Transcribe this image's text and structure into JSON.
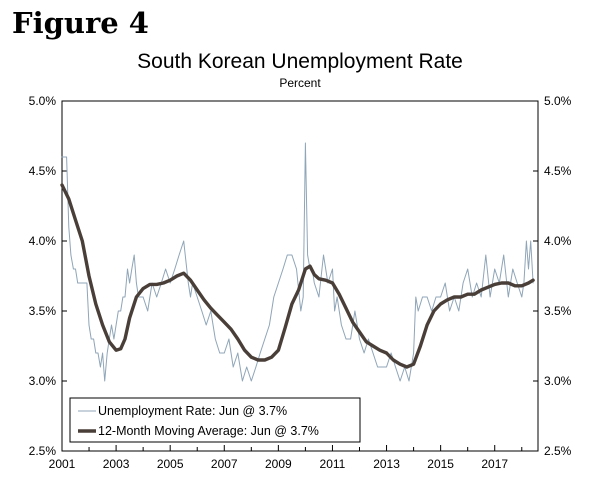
{
  "figure_label": "Figure 4",
  "chart_data": {
    "type": "line",
    "title": "South Korean Unemployment Rate",
    "subtitle": "Percent",
    "xlabel": "",
    "ylabel": "",
    "xlim": [
      2001.0,
      2018.6
    ],
    "ylim": [
      2.5,
      5.0
    ],
    "y_ticks": [
      "5.0%",
      "4.5%",
      "4.0%",
      "3.5%",
      "3.0%",
      "2.5%"
    ],
    "y_tick_values": [
      5.0,
      4.5,
      4.0,
      3.5,
      3.0,
      2.5
    ],
    "x_ticks": [
      "2001",
      "2003",
      "2005",
      "2007",
      "2009",
      "2011",
      "2013",
      "2015",
      "2017"
    ],
    "x_tick_values": [
      2001,
      2003,
      2005,
      2007,
      2009,
      2011,
      2013,
      2015,
      2017
    ],
    "grid": false,
    "legend_position": "bottom-left",
    "colors": {
      "monthly": "#8fa5b8",
      "moving_average": "#4a3f38"
    },
    "series": [
      {
        "name": "Unemployment Rate: Jun @ 3.7%",
        "style": "thin",
        "x": [
          2001.0,
          2001.08,
          2001.17,
          2001.25,
          2001.33,
          2001.42,
          2001.5,
          2001.58,
          2001.67,
          2001.75,
          2001.83,
          2001.92,
          2002.0,
          2002.08,
          2002.17,
          2002.25,
          2002.33,
          2002.42,
          2002.5,
          2002.58,
          2002.67,
          2002.75,
          2002.83,
          2002.92,
          2003.0,
          2003.08,
          2003.17,
          2003.25,
          2003.33,
          2003.42,
          2003.5,
          2003.58,
          2003.67,
          2003.75,
          2003.83,
          2003.92,
          2004.0,
          2004.17,
          2004.33,
          2004.5,
          2004.67,
          2004.83,
          2005.0,
          2005.17,
          2005.33,
          2005.5,
          2005.67,
          2005.75,
          2005.83,
          2006.0,
          2006.17,
          2006.33,
          2006.5,
          2006.67,
          2006.83,
          2007.0,
          2007.17,
          2007.33,
          2007.5,
          2007.67,
          2007.83,
          2008.0,
          2008.17,
          2008.33,
          2008.5,
          2008.67,
          2008.83,
          2009.0,
          2009.17,
          2009.33,
          2009.5,
          2009.67,
          2009.83,
          2009.92,
          2010.0,
          2010.08,
          2010.17,
          2010.25,
          2010.33,
          2010.5,
          2010.67,
          2010.83,
          2011.0,
          2011.08,
          2011.17,
          2011.33,
          2011.5,
          2011.67,
          2011.83,
          2012.0,
          2012.17,
          2012.33,
          2012.5,
          2012.67,
          2012.83,
          2013.0,
          2013.17,
          2013.33,
          2013.5,
          2013.67,
          2013.83,
          2014.0,
          2014.08,
          2014.17,
          2014.33,
          2014.5,
          2014.67,
          2014.83,
          2015.0,
          2015.17,
          2015.33,
          2015.5,
          2015.67,
          2015.83,
          2016.0,
          2016.17,
          2016.33,
          2016.5,
          2016.67,
          2016.83,
          2017.0,
          2017.17,
          2017.33,
          2017.5,
          2017.67,
          2017.83,
          2018.0,
          2018.08,
          2018.17,
          2018.25,
          2018.33,
          2018.42
        ],
        "values": [
          4.6,
          4.6,
          4.6,
          4.1,
          3.9,
          3.8,
          3.8,
          3.7,
          3.7,
          3.7,
          3.7,
          3.7,
          3.4,
          3.3,
          3.3,
          3.2,
          3.2,
          3.1,
          3.2,
          3.0,
          3.2,
          3.3,
          3.4,
          3.3,
          3.4,
          3.5,
          3.5,
          3.6,
          3.6,
          3.8,
          3.7,
          3.8,
          3.9,
          3.7,
          3.6,
          3.6,
          3.6,
          3.5,
          3.7,
          3.6,
          3.7,
          3.8,
          3.7,
          3.8,
          3.9,
          4.0,
          3.7,
          3.6,
          3.7,
          3.6,
          3.5,
          3.4,
          3.5,
          3.3,
          3.2,
          3.2,
          3.3,
          3.1,
          3.2,
          3.0,
          3.1,
          3.0,
          3.1,
          3.2,
          3.3,
          3.4,
          3.6,
          3.7,
          3.8,
          3.9,
          3.9,
          3.8,
          3.5,
          3.6,
          4.7,
          3.9,
          3.8,
          3.8,
          3.7,
          3.6,
          3.9,
          3.7,
          3.8,
          3.5,
          3.6,
          3.4,
          3.3,
          3.3,
          3.5,
          3.3,
          3.2,
          3.3,
          3.2,
          3.1,
          3.1,
          3.1,
          3.2,
          3.1,
          3.0,
          3.1,
          3.0,
          3.2,
          3.6,
          3.5,
          3.6,
          3.6,
          3.5,
          3.6,
          3.6,
          3.7,
          3.5,
          3.6,
          3.5,
          3.7,
          3.8,
          3.6,
          3.7,
          3.6,
          3.9,
          3.6,
          3.8,
          3.7,
          3.9,
          3.6,
          3.8,
          3.7,
          3.6,
          3.7,
          4.0,
          3.8,
          4.0,
          3.7
        ]
      },
      {
        "name": "12-Month Moving Average: Jun @ 3.7%",
        "style": "thick",
        "x": [
          2001.0,
          2001.25,
          2001.5,
          2001.75,
          2002.0,
          2002.25,
          2002.5,
          2002.75,
          2003.0,
          2003.17,
          2003.33,
          2003.5,
          2003.75,
          2004.0,
          2004.25,
          2004.5,
          2004.75,
          2005.0,
          2005.25,
          2005.5,
          2005.75,
          2006.0,
          2006.25,
          2006.5,
          2006.75,
          2007.0,
          2007.25,
          2007.5,
          2007.75,
          2008.0,
          2008.25,
          2008.5,
          2008.75,
          2009.0,
          2009.25,
          2009.5,
          2009.75,
          2010.0,
          2010.17,
          2010.33,
          2010.5,
          2010.75,
          2011.0,
          2011.25,
          2011.5,
          2011.75,
          2012.0,
          2012.25,
          2012.5,
          2012.75,
          2013.0,
          2013.25,
          2013.5,
          2013.75,
          2014.0,
          2014.25,
          2014.5,
          2014.75,
          2015.0,
          2015.25,
          2015.5,
          2015.75,
          2016.0,
          2016.25,
          2016.5,
          2016.75,
          2017.0,
          2017.25,
          2017.5,
          2017.75,
          2018.0,
          2018.25,
          2018.42
        ],
        "values": [
          4.4,
          4.3,
          4.15,
          4.0,
          3.75,
          3.55,
          3.4,
          3.28,
          3.22,
          3.23,
          3.3,
          3.45,
          3.6,
          3.66,
          3.69,
          3.69,
          3.7,
          3.72,
          3.75,
          3.77,
          3.72,
          3.65,
          3.58,
          3.52,
          3.47,
          3.42,
          3.37,
          3.3,
          3.22,
          3.17,
          3.15,
          3.15,
          3.17,
          3.22,
          3.38,
          3.55,
          3.65,
          3.8,
          3.82,
          3.76,
          3.73,
          3.72,
          3.7,
          3.62,
          3.52,
          3.42,
          3.35,
          3.28,
          3.25,
          3.22,
          3.2,
          3.15,
          3.12,
          3.1,
          3.12,
          3.25,
          3.4,
          3.5,
          3.55,
          3.58,
          3.6,
          3.6,
          3.62,
          3.62,
          3.65,
          3.67,
          3.69,
          3.7,
          3.7,
          3.68,
          3.68,
          3.7,
          3.72
        ]
      }
    ]
  }
}
